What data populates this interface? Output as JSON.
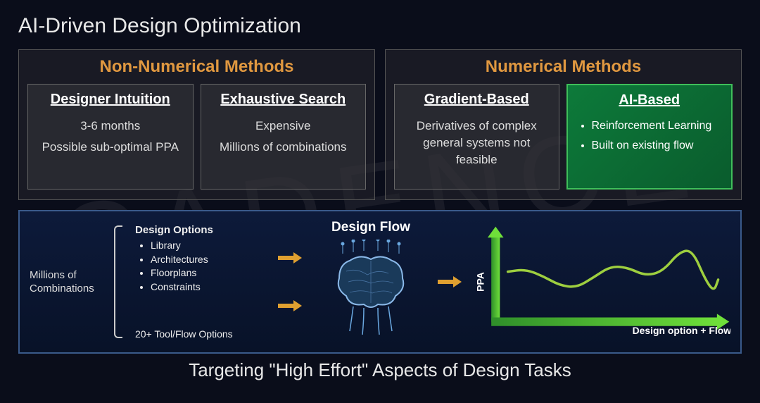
{
  "watermark": "CADENCE",
  "title": "AI-Driven Design Optimization",
  "bottom_title": "Targeting \"High Effort\" Aspects of Design Tasks",
  "colors": {
    "accent_orange": "#e09840",
    "ai_green_border": "#3fbf5a",
    "ai_green_bg1": "#0d7a3a",
    "ai_green_bg2": "#0a5c2d",
    "arrow_orange": "#e0a030",
    "chart_axis_green": "#4fbf3a",
    "chart_line_green": "#9ecf3f",
    "panel_border": "#3a5a8a",
    "panel_bg1": "#0d1a3a",
    "panel_bg2": "#081228",
    "text_light": "#e8e8e8",
    "bg": "#0a0d1a"
  },
  "method_groups": [
    {
      "title": "Non-Numerical Methods",
      "cards": [
        {
          "title": "Designer Intuition",
          "line1": "3-6 months",
          "line2": "Possible sub-optimal PPA"
        },
        {
          "title": "Exhaustive Search",
          "line1": "Expensive",
          "line2": "Millions of combinations"
        }
      ]
    },
    {
      "title": "Numerical Methods",
      "cards": [
        {
          "title": "Gradient-Based",
          "line1": "Derivatives of complex general systems not feasible",
          "line2": ""
        },
        {
          "title": "AI-Based",
          "ai": true,
          "bullets": [
            "Reinforcement Learning",
            "Built on existing flow"
          ]
        }
      ]
    }
  ],
  "flow": {
    "combos_label": "Millions of Combinations",
    "design_options_title": "Design Options",
    "design_options": [
      "Library",
      "Architectures",
      "Floorplans",
      "Constraints"
    ],
    "toolflow_label": "20+ Tool/Flow Options",
    "designflow_title": "Design Flow",
    "chart": {
      "y_label": "PPA",
      "x_label": "Design option + Flow",
      "axis_color": "#4fbf3a",
      "line_color": "#9ecf3f",
      "xlim": [
        0,
        100
      ],
      "ylim": [
        0,
        100
      ],
      "points": [
        [
          2,
          55
        ],
        [
          10,
          58
        ],
        [
          18,
          50
        ],
        [
          26,
          38
        ],
        [
          34,
          35
        ],
        [
          42,
          48
        ],
        [
          50,
          62
        ],
        [
          58,
          60
        ],
        [
          66,
          50
        ],
        [
          74,
          55
        ],
        [
          82,
          80
        ],
        [
          88,
          82
        ],
        [
          94,
          45
        ],
        [
          98,
          30
        ],
        [
          100,
          45
        ]
      ]
    }
  }
}
